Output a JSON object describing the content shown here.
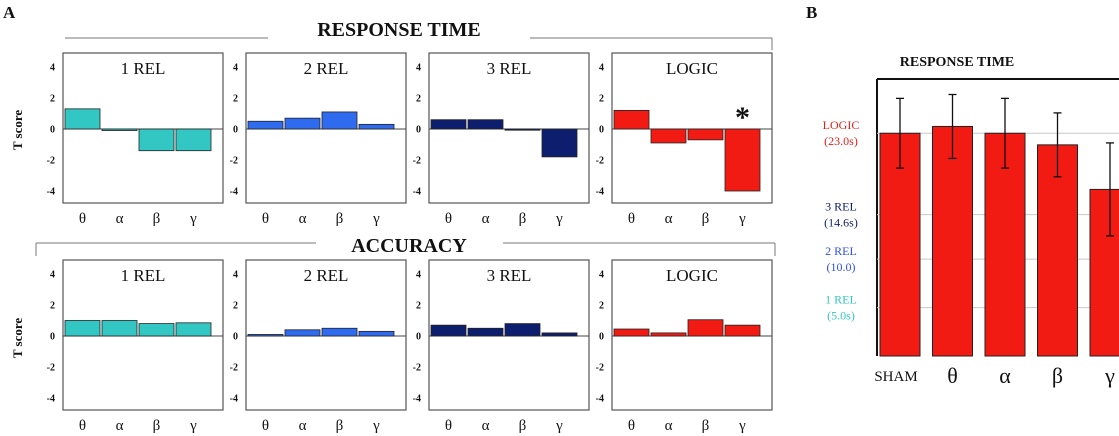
{
  "figure": {
    "panel_a_letter": "A",
    "panel_b_letter": "B",
    "section_titles": [
      "RESPONSE TIME",
      "ACCURACY"
    ],
    "y_axis_label": "T score",
    "significance_marker": "*",
    "colors": {
      "1 REL": "#33C7C4",
      "2 REL": "#2F6BEF",
      "3 REL": "#0E1E6E",
      "LOGIC": "#F21B14",
      "panel_b_bars": "#F21B14"
    }
  },
  "chart_data": [
    {
      "type": "bar",
      "id": "A-rt-1rel",
      "section": "RESPONSE TIME",
      "title": "1 REL",
      "categories": [
        "θ",
        "α",
        "β",
        "γ"
      ],
      "values": [
        1.3,
        -0.1,
        -1.4,
        -1.4
      ],
      "ylim": [
        -4,
        4
      ],
      "yticks": [
        4,
        2,
        0,
        -2,
        -4
      ],
      "ylabel": "T score",
      "color": "#33C7C4"
    },
    {
      "type": "bar",
      "id": "A-rt-2rel",
      "section": "RESPONSE TIME",
      "title": "2 REL",
      "categories": [
        "θ",
        "α",
        "β",
        "γ"
      ],
      "values": [
        0.5,
        0.7,
        1.1,
        0.3
      ],
      "ylim": [
        -4,
        4
      ],
      "yticks": [
        4,
        2,
        0,
        -2,
        -4
      ],
      "color": "#2F6BEF"
    },
    {
      "type": "bar",
      "id": "A-rt-3rel",
      "section": "RESPONSE TIME",
      "title": "3 REL",
      "categories": [
        "θ",
        "α",
        "β",
        "γ"
      ],
      "values": [
        0.6,
        0.6,
        -0.05,
        -1.8
      ],
      "ylim": [
        -4,
        4
      ],
      "yticks": [
        4,
        2,
        0,
        -2,
        -4
      ],
      "color": "#0E1E6E"
    },
    {
      "type": "bar",
      "id": "A-rt-logic",
      "section": "RESPONSE TIME",
      "title": "LOGIC",
      "categories": [
        "θ",
        "α",
        "β",
        "γ"
      ],
      "values": [
        1.2,
        -0.9,
        -0.7,
        -4.0
      ],
      "ylim": [
        -4,
        4
      ],
      "yticks": [
        4,
        2,
        0,
        -2,
        -4
      ],
      "color": "#F21B14",
      "annotation": {
        "category": "γ",
        "text": "*"
      }
    },
    {
      "type": "bar",
      "id": "A-acc-1rel",
      "section": "ACCURACY",
      "title": "1 REL",
      "categories": [
        "θ",
        "α",
        "β",
        "γ"
      ],
      "values": [
        1.0,
        1.0,
        0.8,
        0.85
      ],
      "ylim": [
        -4,
        4
      ],
      "yticks": [
        4,
        2,
        0,
        -2,
        -4
      ],
      "ylabel": "T score",
      "color": "#33C7C4"
    },
    {
      "type": "bar",
      "id": "A-acc-2rel",
      "section": "ACCURACY",
      "title": "2 REL",
      "categories": [
        "θ",
        "α",
        "β",
        "γ"
      ],
      "values": [
        0.1,
        0.4,
        0.5,
        0.3
      ],
      "ylim": [
        -4,
        4
      ],
      "yticks": [
        4,
        2,
        0,
        -2,
        -4
      ],
      "color": "#2F6BEF"
    },
    {
      "type": "bar",
      "id": "A-acc-3rel",
      "section": "ACCURACY",
      "title": "3 REL",
      "categories": [
        "θ",
        "α",
        "β",
        "γ"
      ],
      "values": [
        0.7,
        0.5,
        0.8,
        0.2
      ],
      "ylim": [
        -4,
        4
      ],
      "yticks": [
        4,
        2,
        0,
        -2,
        -4
      ],
      "color": "#0E1E6E"
    },
    {
      "type": "bar",
      "id": "A-acc-logic",
      "section": "ACCURACY",
      "title": "LOGIC",
      "categories": [
        "θ",
        "α",
        "β",
        "γ"
      ],
      "values": [
        0.45,
        0.2,
        1.05,
        0.7
      ],
      "ylim": [
        -4,
        4
      ],
      "yticks": [
        4,
        2,
        0,
        -2,
        -4
      ],
      "color": "#F21B14"
    },
    {
      "type": "bar",
      "id": "B-response-time",
      "title": "RESPONSE TIME",
      "categories": [
        "SHAM",
        "θ",
        "α",
        "β",
        "γ"
      ],
      "values": [
        23.0,
        23.7,
        23.0,
        21.8,
        17.2
      ],
      "errors": [
        3.6,
        3.3,
        3.6,
        3.3,
        4.8
      ],
      "ylim": [
        0,
        28.6
      ],
      "reference_levels": [
        {
          "label_lines": [
            "LOGIC",
            "(23.0s)"
          ],
          "value": 23.0,
          "color": "#E0201A"
        },
        {
          "label_lines": [
            "3 REL",
            "(14.6s)"
          ],
          "value": 14.6,
          "color": "#0E1E6E"
        },
        {
          "label_lines": [
            "2 REL",
            "(10.0)"
          ],
          "value": 10.0,
          "color": "#2F4FEF"
        },
        {
          "label_lines": [
            "1 REL",
            "(5.0s)"
          ],
          "value": 5.0,
          "color": "#33C7C4"
        }
      ],
      "color": "#F21B14"
    }
  ]
}
